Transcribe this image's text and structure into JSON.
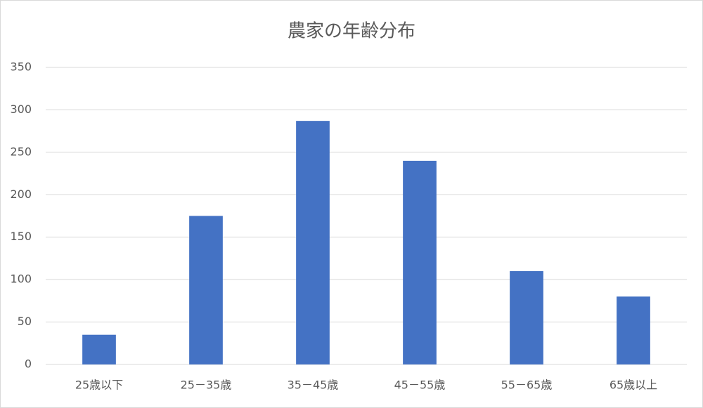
{
  "chart_data": {
    "type": "bar",
    "title": "農家の年齢分布",
    "categories": [
      "25歳以下",
      "25－35歳",
      "35－45歳",
      "45－55歳",
      "55－65歳",
      "65歳以上"
    ],
    "values": [
      35,
      175,
      287,
      240,
      110,
      80
    ],
    "color": "#4472c4",
    "ylim": [
      0,
      350
    ],
    "yticks": [
      0,
      50,
      100,
      150,
      200,
      250,
      300,
      350
    ],
    "grid": true
  }
}
